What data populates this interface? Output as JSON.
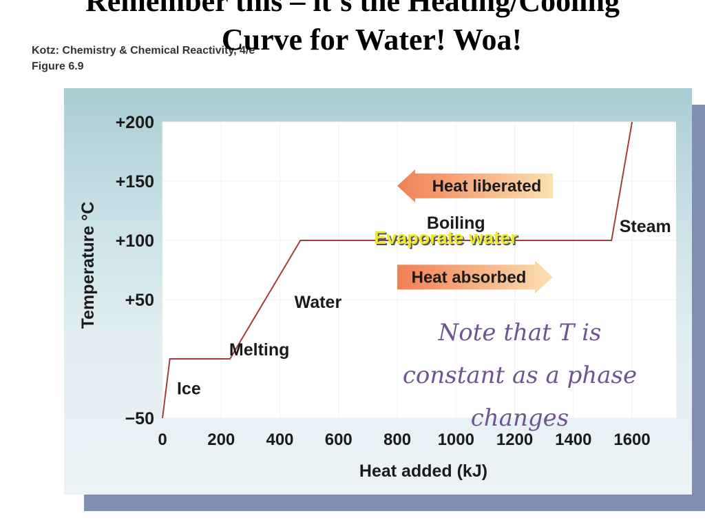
{
  "slide": {
    "title_line_1": "Remember this – it’s the Heating/Cooling",
    "title_line_2": "Curve for Water! Woa!",
    "source_line_1": "Kotz: Chemistry & Chemical Reactivity, 4/e",
    "source_line_2": "Figure 6.9",
    "note_lines": [
      "Note that T is",
      "constant as a phase",
      "changes"
    ]
  },
  "colors": {
    "curve": "#a33b3b",
    "plot_background": "#ffffff",
    "arrow_liberated": [
      "#f08055",
      "#fbe0b0"
    ],
    "arrow_absorbed": [
      "#f08055",
      "#fbe0b0"
    ],
    "highlight_text": "#f0e82a",
    "note_text": "#6f5590"
  },
  "chart_data": {
    "type": "line",
    "xlabel": "Heat added (kJ)",
    "ylabel": "Temperature °C",
    "xlim": [
      0,
      1750
    ],
    "ylim": [
      -50,
      200
    ],
    "x_ticks": [
      0,
      200,
      400,
      600,
      800,
      1000,
      1200,
      1400,
      1600
    ],
    "x_tick_labels": [
      "0",
      "200",
      "400",
      "600",
      "800",
      "1000",
      "1200",
      "1400",
      "1600"
    ],
    "y_ticks": [
      -50,
      50,
      100,
      150,
      200
    ],
    "y_tick_labels": [
      "−50",
      "+50",
      "+100",
      "+150",
      "+200"
    ],
    "grid": true,
    "series": [
      {
        "x": [
          0,
          25,
          230,
          470,
          1530,
          1600
        ],
        "y": [
          -50,
          0,
          0,
          100,
          100,
          200
        ]
      }
    ],
    "annotations": [
      {
        "text": "Ice",
        "x": 90,
        "y": -30
      },
      {
        "text": "Melting",
        "x": 330,
        "y": 3
      },
      {
        "text": "Water",
        "x": 530,
        "y": 43
      },
      {
        "text": "Boiling",
        "x": 1000,
        "y": 110
      },
      {
        "text": "Steam",
        "x": 1645,
        "y": 107
      }
    ],
    "highlight_annotation": {
      "text": "Evaporate water",
      "x": 965,
      "y": 97
    },
    "arrows": [
      {
        "text": "Heat liberated",
        "direction": "left",
        "x_start": 1330,
        "x_end": 800,
        "y": 146
      },
      {
        "text": "Heat absorbed",
        "direction": "right",
        "x_start": 800,
        "x_end": 1330,
        "y": 69
      }
    ]
  }
}
